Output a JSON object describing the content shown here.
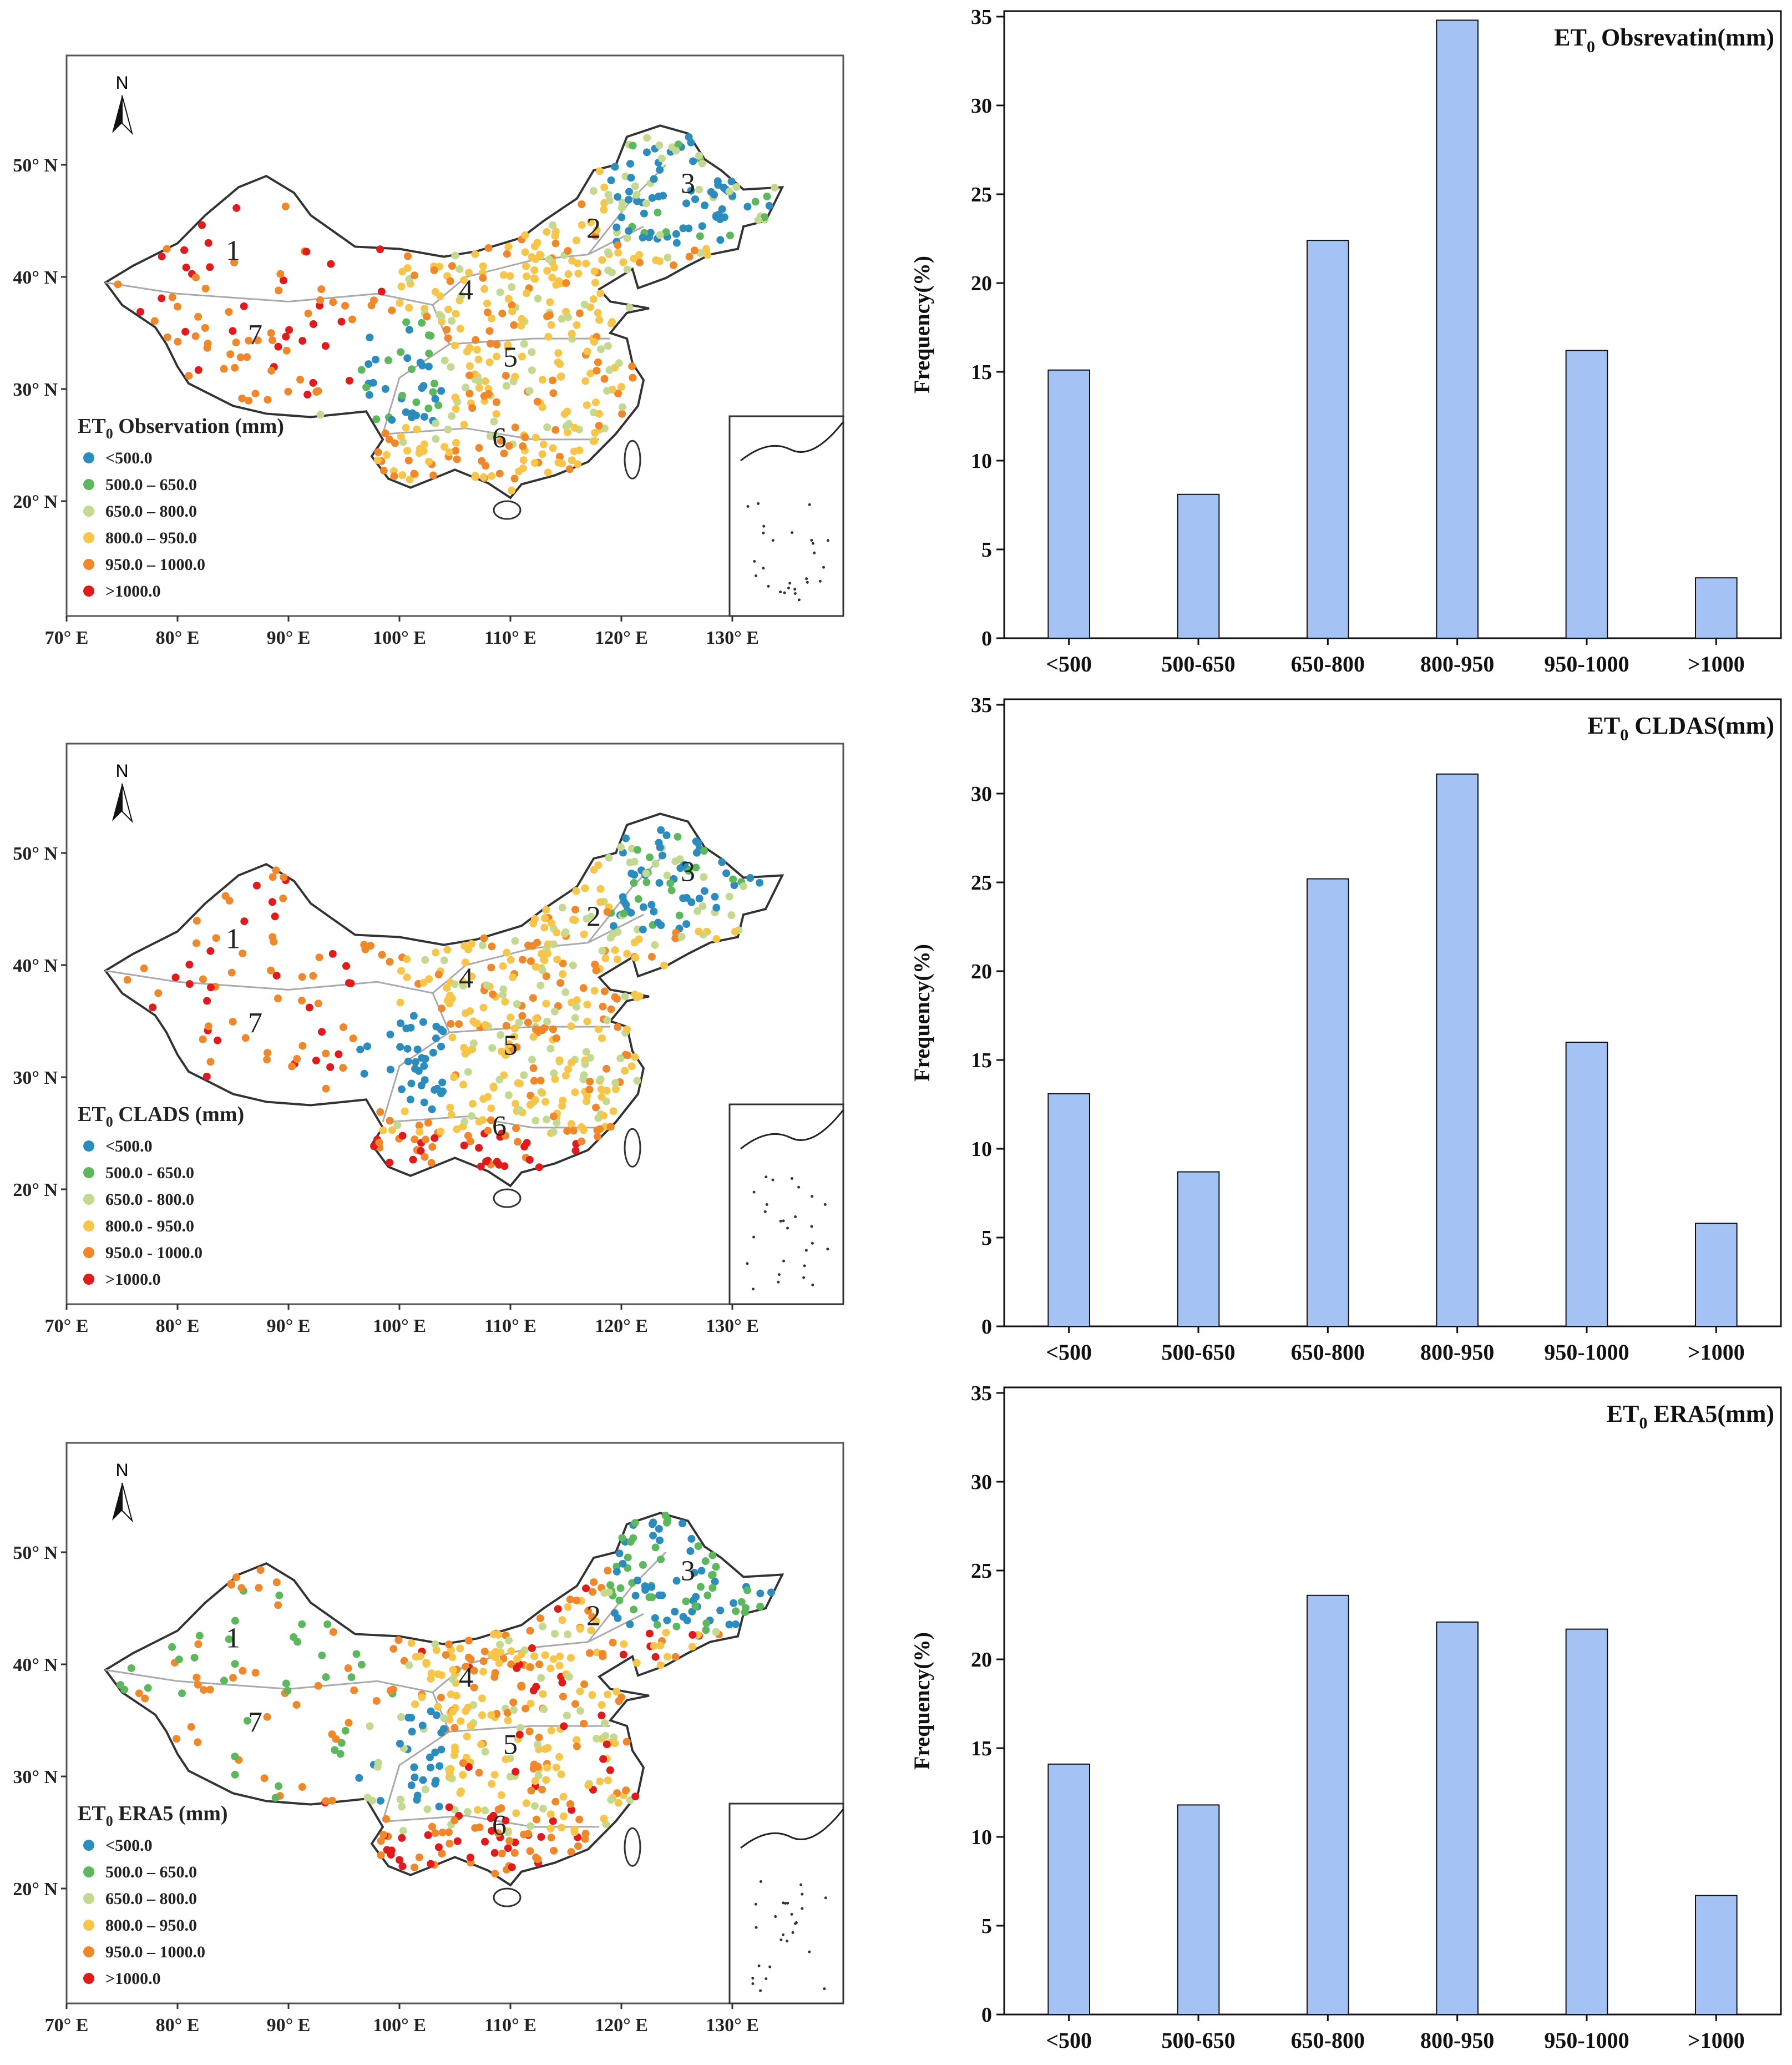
{
  "maps": [
    {
      "legend_title": "ET₀ Observation (mm)",
      "legend_title_main": "ET",
      "legend_title_sub": "0",
      "legend_title_rest": " Observation (mm)",
      "legend_items": [
        "<500.0",
        "500.0 – 650.0",
        "650.0 – 800.0",
        "800.0 – 950.0",
        "950.0 – 1000.0",
        ">1000.0"
      ],
      "lat_labels": [
        "50° N",
        "40° N",
        "30° N",
        "20° N"
      ],
      "lon_labels": [
        "70° E",
        "80° E",
        "90° E",
        "100° E",
        "110° E",
        "120° E",
        "130° E"
      ],
      "north": "N",
      "regions": [
        "1",
        "2",
        "3",
        "4",
        "5",
        "6",
        "7"
      ]
    },
    {
      "legend_title": "ET₀ CLADS (mm)",
      "legend_title_main": "ET",
      "legend_title_sub": "0",
      "legend_title_rest": " CLADS (mm)",
      "legend_items": [
        "<500.0",
        "500.0 - 650.0",
        "650.0 - 800.0",
        "800.0 - 950.0",
        "950.0 - 1000.0",
        ">1000.0"
      ],
      "lat_labels": [
        "50° N",
        "40° N",
        "30° N",
        "20° N"
      ],
      "lon_labels": [
        "70° E",
        "80° E",
        "90° E",
        "100° E",
        "110° E",
        "120° E",
        "130° E"
      ],
      "north": "N",
      "regions": [
        "1",
        "2",
        "3",
        "4",
        "5",
        "6",
        "7"
      ]
    },
    {
      "legend_title": "ET₀ ERA5 (mm)",
      "legend_title_main": "ET",
      "legend_title_sub": "0",
      "legend_title_rest": " ERA5 (mm)",
      "legend_items": [
        "<500.0",
        "500.0 – 650.0",
        "650.0 – 800.0",
        "800.0 – 950.0",
        "950.0 – 1000.0",
        ">1000.0"
      ],
      "lat_labels": [
        "50° N",
        "40° N",
        "30° N",
        "20° N"
      ],
      "lon_labels": [
        "70° E",
        "80° E",
        "90° E",
        "100° E",
        "110° E",
        "120° E",
        "130° E"
      ],
      "north": "N",
      "regions": [
        "1",
        "2",
        "3",
        "4",
        "5",
        "6",
        "7"
      ]
    }
  ],
  "legend_colors": [
    "#2b8cbe",
    "#5cb85c",
    "#c2d98f",
    "#f7c548",
    "#f0882a",
    "#e31a1c"
  ],
  "chart_data": [
    {
      "type": "bar",
      "title": "ET₀ Obsrevatin(mm)",
      "title_main": "ET",
      "title_sub": "0",
      "title_rest": " Obsrevatin(mm)",
      "categories": [
        "<500",
        "500-650",
        "650-800",
        "800-950",
        "950-1000",
        ">1000"
      ],
      "values": [
        15.1,
        8.1,
        22.4,
        34.8,
        16.2,
        3.4
      ],
      "ylabel": "Frequency(%)",
      "xlabel": "",
      "ylim": [
        0,
        35
      ],
      "yticks": [
        0,
        5,
        10,
        15,
        20,
        25,
        30,
        35
      ],
      "bar_color": "#a4c2f4"
    },
    {
      "type": "bar",
      "title": "ET₀ CLDAS(mm)",
      "title_main": "ET",
      "title_sub": "0",
      "title_rest": "  CLDAS(mm)",
      "categories": [
        "<500",
        "500-650",
        "650-800",
        "800-950",
        "950-1000",
        ">1000"
      ],
      "values": [
        13.1,
        8.7,
        25.2,
        31.1,
        16.0,
        5.8
      ],
      "ylabel": "Frequency(%)",
      "xlabel": "",
      "ylim": [
        0,
        35
      ],
      "yticks": [
        0,
        5,
        10,
        15,
        20,
        25,
        30,
        35
      ],
      "bar_color": "#a4c2f4"
    },
    {
      "type": "bar",
      "title": "ET₀ ERA5(mm)",
      "title_main": "ET",
      "title_sub": "0",
      "title_rest": "  ERA5(mm)",
      "categories": [
        "<500",
        "500-650",
        "650-800",
        "800-950",
        "950-1000",
        ">1000"
      ],
      "values": [
        14.1,
        11.8,
        23.6,
        22.1,
        21.7,
        6.7
      ],
      "ylabel": "Frequency(%)",
      "xlabel": "",
      "ylim": [
        0,
        35
      ],
      "yticks": [
        0,
        5,
        10,
        15,
        20,
        25,
        30,
        35
      ],
      "bar_color": "#a4c2f4"
    }
  ]
}
